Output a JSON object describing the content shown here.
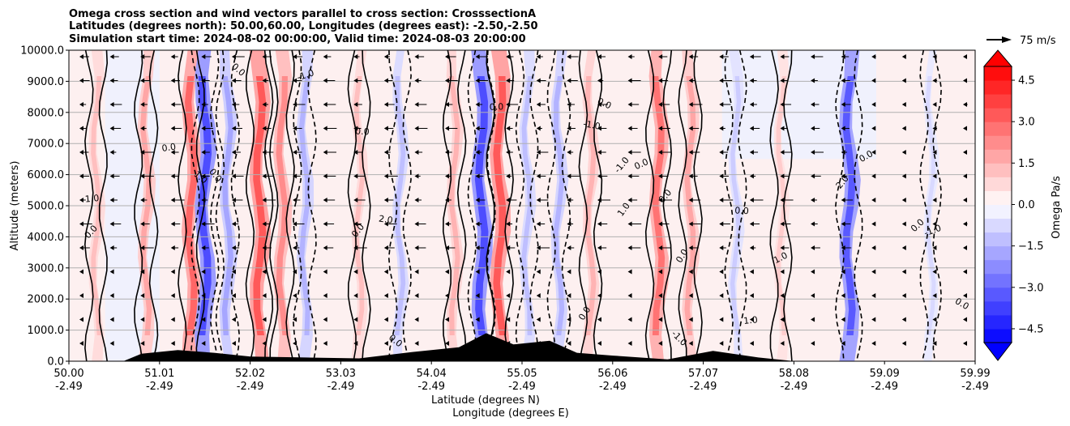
{
  "chart_data": {
    "type": "contourf",
    "title_lines": [
      "Omega cross section and wind vectors parallel to cross section: CrosssectionA",
      "Latitudes (degrees north): 50.00,60.00, Longitudes (degrees east): -2.50,-2.50",
      "Simulation start time: 2024-08-02 00:00:00, Valid time: 2024-08-03 20:00:00"
    ],
    "ylabel": "Altitude (meters)",
    "xlabel_lines": [
      "Latitude (degrees N)",
      "Longitude (degrees E)"
    ],
    "ylim": [
      0,
      10000
    ],
    "y_ticks": [
      "0.0",
      "1000.0",
      "2000.0",
      "3000.0",
      "4000.0",
      "5000.0",
      "6000.0",
      "7000.0",
      "8000.0",
      "9000.0",
      "10000.0"
    ],
    "x_ticks_lat": [
      "50.00",
      "51.01",
      "52.02",
      "53.03",
      "54.04",
      "55.05",
      "56.06",
      "57.07",
      "58.08",
      "59.09",
      "59.99"
    ],
    "x_ticks_lon": [
      "-2.49",
      "-2.49",
      "-2.49",
      "-2.49",
      "-2.49",
      "-2.49",
      "-2.49",
      "-2.49",
      "-2.49",
      "-2.49",
      "-2.49"
    ],
    "colorbar": {
      "label": "Omega Pa/s",
      "range": [
        -5,
        5
      ],
      "ticks": [
        "4.5",
        "3.0",
        "1.5",
        "0.0",
        "−1.5",
        "−3.0",
        "−4.5"
      ],
      "tick_values": [
        4.5,
        3.0,
        1.5,
        0.0,
        -1.5,
        -3.0,
        -4.5
      ]
    },
    "quiver_key": "75 m/s",
    "contour_labels": [
      "1.0",
      "0.0",
      "-1.0",
      "2.0",
      "1.0",
      "0.0",
      "-1.0",
      "0.0",
      "1.0",
      "2.0",
      "0.0",
      "-1.0",
      "0.0",
      "1.0",
      "0.0",
      "0.0",
      "-1.0",
      "0.0",
      "1.0",
      "0.0",
      "0.0",
      "-1.0",
      "0.0",
      "0.0",
      "0.0",
      "0.0",
      "0.0",
      "0.0",
      "0.0"
    ],
    "vertical_bands": [
      {
        "lat": 50.3,
        "sign": 1,
        "strength": 0.25
      },
      {
        "lat": 50.85,
        "sign": 1,
        "strength": 0.35
      },
      {
        "lat": 51.35,
        "sign": 1,
        "strength": 0.6
      },
      {
        "lat": 51.5,
        "sign": -1,
        "strength": 0.7
      },
      {
        "lat": 51.75,
        "sign": -1,
        "strength": 0.35
      },
      {
        "lat": 52.1,
        "sign": 1,
        "strength": 0.65
      },
      {
        "lat": 52.35,
        "sign": 1,
        "strength": 0.45
      },
      {
        "lat": 52.6,
        "sign": -1,
        "strength": 0.3
      },
      {
        "lat": 53.2,
        "sign": 1,
        "strength": 0.25
      },
      {
        "lat": 53.65,
        "sign": -1,
        "strength": 0.25
      },
      {
        "lat": 54.25,
        "sign": 1,
        "strength": 0.3
      },
      {
        "lat": 54.55,
        "sign": -1,
        "strength": 0.7
      },
      {
        "lat": 54.75,
        "sign": 1,
        "strength": 0.65
      },
      {
        "lat": 55.05,
        "sign": -1,
        "strength": 0.25
      },
      {
        "lat": 55.4,
        "sign": -1,
        "strength": 0.3
      },
      {
        "lat": 55.75,
        "sign": 1,
        "strength": 0.3
      },
      {
        "lat": 56.5,
        "sign": 1,
        "strength": 0.55
      },
      {
        "lat": 56.85,
        "sign": 1,
        "strength": 0.35
      },
      {
        "lat": 57.35,
        "sign": -1,
        "strength": 0.2
      },
      {
        "lat": 57.85,
        "sign": 1,
        "strength": 0.2
      },
      {
        "lat": 58.6,
        "sign": -1,
        "strength": 0.65
      },
      {
        "lat": 59.5,
        "sign": -1,
        "strength": 0.15
      }
    ]
  }
}
